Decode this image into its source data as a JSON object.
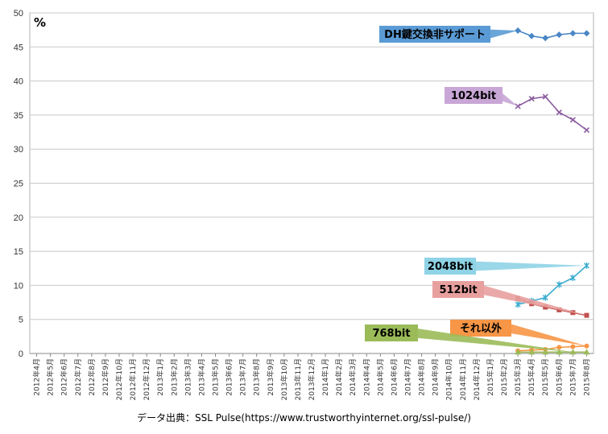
{
  "chart_data": {
    "type": "line",
    "unit_label": "%",
    "ylim": [
      0,
      50
    ],
    "yticks": [
      0,
      5,
      10,
      15,
      20,
      25,
      30,
      35,
      40,
      45,
      50
    ],
    "grid": true,
    "categories": [
      "2012年4月",
      "2012年5月",
      "2012年6月",
      "2012年7月",
      "2012年8月",
      "2012年9月",
      "2012年10月",
      "2012年11月",
      "2012年12月",
      "2013年1月",
      "2013年2月",
      "2013年3月",
      "2013年4月",
      "2013年5月",
      "2013年6月",
      "2013年7月",
      "2013年8月",
      "2013年9月",
      "2013年10月",
      "2013年11月",
      "2013年12月",
      "2014年1月",
      "2014年2月",
      "2014年3月",
      "2014年4月",
      "2014年5月",
      "2014年6月",
      "2014年7月",
      "2014年8月",
      "2014年9月",
      "2014年10月",
      "2014年11月",
      "2014年12月",
      "2015年1月",
      "2015年2月",
      "2015年3月",
      "2015年4月",
      "2015年5月",
      "2015年6月",
      "2015年7月",
      "2015年8月"
    ],
    "series": [
      {
        "name": "DH鍵交換非サポート",
        "color": "#4a86c5",
        "label_color": "#5b9bd5",
        "marker": "diamond",
        "values": [
          null,
          null,
          null,
          null,
          null,
          null,
          null,
          null,
          null,
          null,
          null,
          null,
          null,
          null,
          null,
          null,
          null,
          null,
          null,
          null,
          null,
          null,
          null,
          null,
          null,
          null,
          null,
          null,
          null,
          null,
          null,
          null,
          null,
          null,
          null,
          47.4,
          46.6,
          46.3,
          46.8,
          47.0,
          47.0
        ]
      },
      {
        "name": "1024bit",
        "color": "#8a5a9e",
        "label_color": "#c8a6d6",
        "marker": "x",
        "values": [
          null,
          null,
          null,
          null,
          null,
          null,
          null,
          null,
          null,
          null,
          null,
          null,
          null,
          null,
          null,
          null,
          null,
          null,
          null,
          null,
          null,
          null,
          null,
          null,
          null,
          null,
          null,
          null,
          null,
          null,
          null,
          null,
          null,
          null,
          null,
          36.3,
          37.4,
          37.7,
          35.4,
          34.3,
          32.8
        ]
      },
      {
        "name": "2048bit",
        "color": "#3aaccf",
        "label_color": "#8fd3e6",
        "marker": "star",
        "values": [
          null,
          null,
          null,
          null,
          null,
          null,
          null,
          null,
          null,
          null,
          null,
          null,
          null,
          null,
          null,
          null,
          null,
          null,
          null,
          null,
          null,
          null,
          null,
          null,
          null,
          null,
          null,
          null,
          null,
          null,
          null,
          null,
          null,
          null,
          null,
          7.2,
          7.7,
          8.2,
          10.1,
          11.1,
          12.9
        ]
      },
      {
        "name": "512bit",
        "color": "#c0504d",
        "label_color": "#e8a09e",
        "marker": "square",
        "values": [
          null,
          null,
          null,
          null,
          null,
          null,
          null,
          null,
          null,
          null,
          null,
          null,
          null,
          null,
          null,
          null,
          null,
          null,
          null,
          null,
          null,
          null,
          null,
          null,
          null,
          null,
          null,
          null,
          null,
          null,
          null,
          null,
          null,
          null,
          null,
          8.1,
          7.3,
          6.8,
          6.4,
          6.0,
          5.6
        ]
      },
      {
        "name": "それ以外",
        "color": "#f79646",
        "label_color": "#f79646",
        "marker": "circle",
        "values": [
          null,
          null,
          null,
          null,
          null,
          null,
          null,
          null,
          null,
          null,
          null,
          null,
          null,
          null,
          null,
          null,
          null,
          null,
          null,
          null,
          null,
          null,
          null,
          null,
          null,
          null,
          null,
          null,
          null,
          null,
          null,
          null,
          null,
          null,
          null,
          0.4,
          0.5,
          0.6,
          0.9,
          1.0,
          1.1
        ]
      },
      {
        "name": "768bit",
        "color": "#9bbb59",
        "label_color": "#9bbb59",
        "marker": "triangle",
        "values": [
          null,
          null,
          null,
          null,
          null,
          null,
          null,
          null,
          null,
          null,
          null,
          null,
          null,
          null,
          null,
          null,
          null,
          null,
          null,
          null,
          null,
          null,
          null,
          null,
          null,
          null,
          null,
          null,
          null,
          null,
          null,
          null,
          null,
          null,
          null,
          0.2,
          0.2,
          0.2,
          0.2,
          0.2,
          0.2
        ]
      }
    ],
    "source": "データ出典：SSL Pulse(https://www.trustworthyinternet.org/ssl-pulse/)"
  }
}
